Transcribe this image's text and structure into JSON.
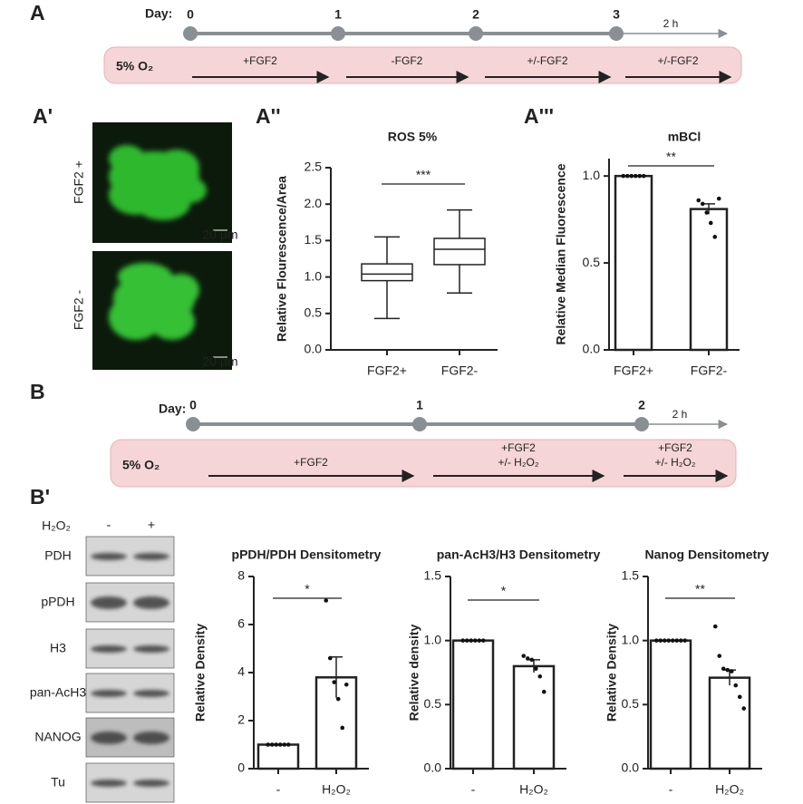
{
  "panel_labels": [
    "A",
    "A'",
    "A''",
    "A'''",
    "B",
    "B'"
  ],
  "timeline_a": {
    "day_label": "Day:",
    "days": [
      "0",
      "1",
      "2",
      "3"
    ],
    "duration": "2 h",
    "condition": "5% O₂",
    "steps": [
      "+FGF2",
      "-FGF2",
      "+/-FGF2",
      "+/-FGF2"
    ]
  },
  "timeline_b": {
    "day_label": "Day:",
    "days": [
      "0",
      "1",
      "2"
    ],
    "duration": "2 h",
    "condition": "5% O₂",
    "steps": [
      [
        "+FGF2"
      ],
      [
        "+FGF2",
        "+/- H₂O₂"
      ],
      [
        "+FGF2",
        "+/- H₂O₂"
      ]
    ]
  },
  "micrographs": {
    "labels": [
      "FGF2 +",
      "FGF2 -"
    ],
    "scale_bars": [
      "20 µm",
      "20 µm"
    ]
  },
  "western_blot": {
    "treatment": "H₂O₂",
    "lanes": [
      "-",
      "+"
    ],
    "rows": [
      "PDH",
      "pPDH",
      "H3",
      "pan-AcH3",
      "NANOG",
      "Tu"
    ]
  },
  "chart_data": [
    {
      "type": "box",
      "title": "ROS 5%",
      "y_label": "Relative Flourescence/Area",
      "categories": [
        "FGF2+",
        "FGF2-"
      ],
      "boxes": [
        {
          "min": 0.43,
          "q1": 0.95,
          "median": 1.04,
          "q3": 1.18,
          "max": 1.55
        },
        {
          "min": 0.78,
          "q1": 1.17,
          "median": 1.38,
          "q3": 1.53,
          "max": 1.92
        }
      ],
      "ylim": [
        0,
        2.5
      ],
      "yticks": [
        {
          "value": 0,
          "label": "0.0"
        },
        {
          "value": 0.5,
          "label": "0.5"
        },
        {
          "value": 1,
          "label": "1.0"
        },
        {
          "value": 1.5,
          "label": "1.5"
        },
        {
          "value": 2,
          "label": "2.0"
        },
        {
          "value": 2.5,
          "label": "2.5"
        }
      ],
      "significance": "***"
    },
    {
      "type": "bar",
      "title": "mBCl",
      "y_label": "Relative Median Fluorescence",
      "categories": [
        "FGF2+",
        "FGF2-"
      ],
      "values": [
        1.0,
        0.81
      ],
      "errors": [
        0,
        0.03
      ],
      "points": [
        [
          1,
          1,
          1,
          1,
          1,
          1
        ],
        [
          0.86,
          0.84,
          0.79,
          0.73,
          0.65,
          0.87
        ]
      ],
      "ylim": [
        0,
        1.1
      ],
      "yticks": [
        {
          "value": 0,
          "label": "0.0"
        },
        {
          "value": 0.5,
          "label": "0.5"
        },
        {
          "value": 1,
          "label": "1.0"
        }
      ],
      "significance": "**"
    },
    {
      "type": "bar",
      "title": "pPDH/PDH Densitometry",
      "y_label": "Relative Density",
      "categories": [
        "-",
        "H₂O₂"
      ],
      "values": [
        1,
        3.8
      ],
      "errors": [
        0,
        0.85
      ],
      "points": [
        [
          1,
          1,
          1,
          1,
          1,
          1
        ],
        [
          7.0,
          4.6,
          3.6,
          2.9,
          1.7,
          3.5
        ]
      ],
      "ylim": [
        0,
        8
      ],
      "yticks": [
        0,
        2,
        4,
        6,
        8
      ],
      "significance": "*"
    },
    {
      "type": "bar",
      "title": "pan-AcH3/H3 Densitometry",
      "y_label": "Relative density",
      "categories": [
        "-",
        "H₂O₂"
      ],
      "values": [
        1.0,
        0.8
      ],
      "errors": [
        0,
        0.05
      ],
      "points": [
        [
          1,
          1,
          1,
          1,
          1,
          1
        ],
        [
          0.88,
          0.86,
          0.85,
          0.78,
          0.72,
          0.6
        ]
      ],
      "ylim": [
        0,
        1.5
      ],
      "yticks": [
        {
          "value": 0,
          "label": "0.0"
        },
        {
          "value": 0.5,
          "label": "0.5"
        },
        {
          "value": 1,
          "label": "1.0"
        },
        {
          "value": 1.5,
          "label": "1.5"
        }
      ],
      "significance": "*"
    },
    {
      "type": "bar",
      "title": "Nanog Densitometry",
      "y_label": "Relative Density",
      "categories": [
        "-",
        "H₂O₂"
      ],
      "values": [
        1.0,
        0.71
      ],
      "errors": [
        0,
        0.06
      ],
      "points": [
        [
          1,
          1,
          1,
          1,
          1,
          1,
          1,
          1
        ],
        [
          1.11,
          0.88,
          0.78,
          0.77,
          0.76,
          0.65,
          0.56,
          0.47
        ]
      ],
      "ylim": [
        0,
        1.5
      ],
      "yticks": [
        {
          "value": 0,
          "label": "0.0"
        },
        {
          "value": 0.5,
          "label": "0.5"
        },
        {
          "value": 1,
          "label": "1.0"
        },
        {
          "value": 1.5,
          "label": "1.5"
        }
      ],
      "significance": "**"
    }
  ]
}
